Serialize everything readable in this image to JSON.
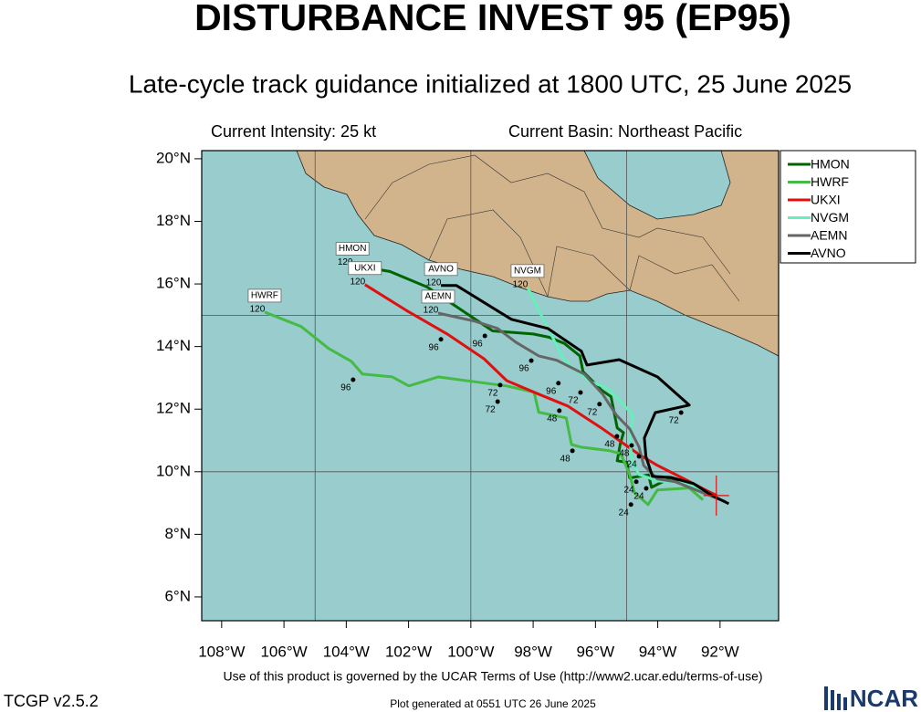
{
  "chart_data": {
    "type": "track",
    "title": "DISTURBANCE INVEST 95 (EP95)",
    "subtitle": "Late-cycle track guidance initialized at 1800 UTC, 25 June 2025",
    "intensity": "Current Intensity: 25 kt",
    "basin": "Current Basin: Northeast Pacific",
    "terms": "Use of this product is governed by the UCAR Terms of Use (http://www2.ucar.edu/terms-of-use)",
    "version": "TCGP v2.5.2",
    "generated": "Plot generated at 0551 UTC   26 June 2025",
    "logo": "NCAR",
    "xlim": [
      -108.64,
      -90.12
    ],
    "ylim": [
      5.24,
      20.26
    ],
    "xticks": [
      {
        "value": -108,
        "label": "108°W"
      },
      {
        "value": -106,
        "label": "106°W"
      },
      {
        "value": -104,
        "label": "104°W"
      },
      {
        "value": -102,
        "label": "102°W"
      },
      {
        "value": -100,
        "label": "100°W"
      },
      {
        "value": -98,
        "label": "98°W"
      },
      {
        "value": -96,
        "label": "96°W"
      },
      {
        "value": -94,
        "label": "94°W"
      },
      {
        "value": -92,
        "label": "92°W"
      }
    ],
    "yticks": [
      {
        "value": 6,
        "label": "6°N"
      },
      {
        "value": 8,
        "label": "8°N"
      },
      {
        "value": 10,
        "label": "10°N"
      },
      {
        "value": 12,
        "label": "12°N"
      },
      {
        "value": 14,
        "label": "14°N"
      },
      {
        "value": 16,
        "label": "16°N"
      },
      {
        "value": 18,
        "label": "18°N"
      },
      {
        "value": 20,
        "label": "20°N"
      }
    ],
    "grid": {
      "lon": [
        -105,
        -100,
        -95
      ],
      "lat": [
        10,
        15
      ]
    },
    "current_position": {
      "lon": -92.12,
      "lat": 9.24
    },
    "series": [
      {
        "name": "HMON",
        "color": "#006400",
        "end_hour": 120,
        "x": [
          -92.1,
          -92.9,
          -93.6,
          -94.2,
          -94.3,
          -94.9,
          -95.0,
          -95.3,
          -95.2,
          -95.1,
          -95.3,
          -95.5,
          -95.8,
          -96.4,
          -96.5,
          -97.0,
          -97.5,
          -98.0,
          -99.3,
          -100.5,
          -101.4,
          -102.6,
          -103.8
        ],
        "y": [
          9.24,
          9.6,
          9.8,
          9.5,
          9.9,
          9.8,
          10.3,
          10.35,
          10.9,
          11.25,
          11.4,
          12.4,
          12.6,
          13.2,
          13.7,
          14.1,
          14.3,
          14.4,
          14.5,
          15.3,
          15.9,
          16.4,
          16.6
        ],
        "hour_labels": [
          {
            "hour": 24,
            "lon": -94.69,
            "lat": 9.68
          },
          {
            "hour": 48,
            "lon": -95.31,
            "lat": 11.13
          },
          {
            "hour": 72,
            "lon": -96.48,
            "lat": 12.53
          },
          {
            "hour": 96,
            "lon": -99.55,
            "lat": 14.34
          }
        ]
      },
      {
        "name": "HWRF",
        "color": "#44bb44",
        "end_hour": 120,
        "x": [
          -92.55,
          -92.99,
          -94.01,
          -94.31,
          -94.75,
          -94.9,
          -95.19,
          -95.54,
          -96.48,
          -96.77,
          -96.94,
          -97.82,
          -97.97,
          -98.85,
          -101.05,
          -101.99,
          -102.52,
          -103.48,
          -103.84,
          -104.57,
          -105.45,
          -106.62
        ],
        "y": [
          9.1,
          9.48,
          9.42,
          8.95,
          9.33,
          9.91,
          10.58,
          10.67,
          10.79,
          10.87,
          11.72,
          11.9,
          12.54,
          12.74,
          13.03,
          12.74,
          13.03,
          13.12,
          13.53,
          13.94,
          14.64,
          15.1
        ],
        "hour_labels": [
          {
            "hour": 24,
            "lon": -94.86,
            "lat": 8.95
          },
          {
            "hour": 48,
            "lon": -96.74,
            "lat": 10.67
          },
          {
            "hour": 72,
            "lon": -99.14,
            "lat": 12.24
          },
          {
            "hour": 96,
            "lon": -103.78,
            "lat": 12.94
          }
        ]
      },
      {
        "name": "UKXI",
        "color": "#e01010",
        "end_hour": 120,
        "x": [
          -92.12,
          -93.13,
          -94.01,
          -94.6,
          -95.77,
          -96.89,
          -97.82,
          -98.85,
          -99.58,
          -100.76,
          -102.08,
          -103.4
        ],
        "y": [
          9.24,
          9.76,
          10.2,
          10.55,
          11.37,
          12.1,
          12.48,
          12.91,
          13.61,
          14.4,
          15.16,
          15.98
        ],
        "hour_labels": [
          {
            "hour": 24,
            "lon": -94.6,
            "lat": 10.49
          },
          {
            "hour": 48,
            "lon": -97.16,
            "lat": 11.95
          },
          {
            "hour": 72,
            "lon": -99.06,
            "lat": 12.77
          },
          {
            "hour": 96,
            "lon": -100.96,
            "lat": 14.23
          }
        ]
      },
      {
        "name": "NVGM",
        "color": "#66eebb",
        "end_hour": 120,
        "x": [
          -92.26,
          -92.99,
          -94.01,
          -94.6,
          -94.83,
          -94.9,
          -94.8,
          -95.19,
          -95.63,
          -96.21,
          -97.0,
          -97.3,
          -97.59,
          -97.82,
          -98.18
        ],
        "y": [
          9.18,
          9.62,
          9.71,
          9.91,
          10.35,
          11.08,
          11.81,
          12.24,
          12.68,
          12.89,
          13.56,
          14.14,
          14.72,
          15.16,
          15.89
        ],
        "hour_labels": [
          {
            "hour": 96,
            "lon": -97.19,
            "lat": 12.83
          }
        ]
      },
      {
        "name": "AEMN",
        "color": "#666666",
        "end_hour": 120,
        "x": [
          -91.82,
          -92.55,
          -93.43,
          -94.01,
          -94.45,
          -94.6,
          -94.9,
          -95.33,
          -95.77,
          -96.36,
          -97.24,
          -97.82,
          -98.56,
          -99.14,
          -99.87,
          -101.05
        ],
        "y": [
          9.04,
          9.33,
          9.68,
          9.77,
          10.2,
          10.79,
          11.37,
          11.81,
          12.48,
          13.12,
          13.56,
          13.7,
          14.14,
          14.58,
          14.81,
          15.07
        ],
        "hour_labels": [
          {
            "hour": 24,
            "lon": -94.37,
            "lat": 9.47
          },
          {
            "hour": 48,
            "lon": -94.84,
            "lat": 10.84
          },
          {
            "hour": 72,
            "lon": -95.87,
            "lat": 12.16
          },
          {
            "hour": 96,
            "lon": -98.06,
            "lat": 13.55
          }
        ]
      },
      {
        "name": "AVNO",
        "color": "#000000",
        "end_hour": 120,
        "x": [
          -91.72,
          -92.26,
          -92.85,
          -93.58,
          -94.17,
          -94.38,
          -94.43,
          -94.08,
          -92.99,
          -94.01,
          -95.24,
          -96.27,
          -96.45,
          -97.53,
          -98.7,
          -100.46,
          -100.96
        ],
        "y": [
          8.98,
          9.24,
          9.62,
          9.82,
          9.85,
          10.49,
          11.08,
          11.89,
          12.13,
          13.03,
          13.58,
          13.41,
          13.85,
          14.58,
          14.87,
          15.95,
          15.95
        ],
        "hour_labels": [
          {
            "hour": 72,
            "lon": -93.25,
            "lat": 11.89
          }
        ]
      }
    ]
  }
}
